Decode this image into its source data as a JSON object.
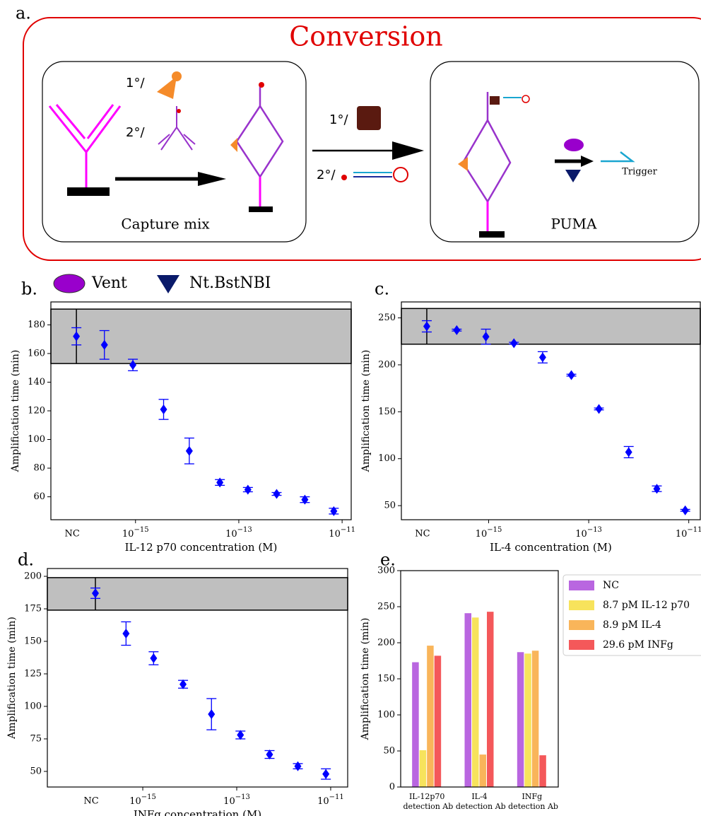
{
  "diagram": {
    "panel": "a.",
    "title": "Conversion",
    "capture": {
      "primary": "1°/",
      "secondary": "2°/",
      "label": "Capture mix"
    },
    "conversion": {
      "primary": "1°/",
      "secondary": "2°/"
    },
    "puma": {
      "label": "PUMA",
      "output": "Trigger"
    },
    "legend": [
      "Vent",
      "Nt.BstNBI"
    ]
  },
  "chart_data": [
    {
      "type": "scatter",
      "panel": "b.",
      "x_label": "IL-12 p70 concentration (M)",
      "y_label": "Amplification time (min)",
      "color": "#0000ff",
      "xscale": "log",
      "control": {
        "label": "NC",
        "value": 172,
        "error": 6
      },
      "band": [
        153,
        191
      ],
      "x": [
        2.5e-16,
        8.9e-16,
        3.5e-15,
        1.1e-14,
        4.3e-14,
        1.5e-13,
        5.4e-13,
        1.9e-12,
        6.9e-12
      ],
      "values": [
        166,
        152,
        121,
        92,
        70,
        65,
        62,
        58,
        50
      ],
      "errors": [
        10,
        4,
        7,
        9,
        2,
        1.5,
        1,
        2,
        2
      ],
      "xlim": [
        2.3e-17,
        1.5e-11
      ],
      "ylim": [
        44,
        196
      ],
      "xticks": [
        {
          "value": 1e-15,
          "label": "10−15"
        },
        {
          "value": 1e-13,
          "label": "10−13"
        },
        {
          "value": 1e-11,
          "label": "10−11"
        }
      ],
      "yticks": [
        60,
        80,
        100,
        120,
        140,
        160,
        180
      ]
    },
    {
      "type": "scatter",
      "panel": "c.",
      "x_label": "IL-4 concentration (M)",
      "y_label": "Amplification time (min)",
      "color": "#0000ff",
      "xscale": "log",
      "control": {
        "label": "NC",
        "value": 241,
        "error": 6
      },
      "band": [
        222,
        260
      ],
      "x": [
        2.3e-16,
        8.8e-16,
        3.2e-15,
        1.2e-14,
        4.5e-14,
        1.6e-13,
        6.3e-13,
        2.3e-12,
        8.5e-12
      ],
      "values": [
        237,
        230,
        223,
        208,
        189,
        153,
        107,
        68,
        45
      ],
      "errors": [
        1,
        8,
        1,
        6,
        1,
        1,
        6,
        3,
        1
      ],
      "xlim": [
        1.8e-17,
        1.7e-11
      ],
      "ylim": [
        35,
        267
      ],
      "xticks": [
        {
          "value": 1e-15,
          "label": "10−15"
        },
        {
          "value": 1e-13,
          "label": "10−13"
        },
        {
          "value": 1e-11,
          "label": "10−11"
        }
      ],
      "yticks": [
        50,
        100,
        150,
        200,
        250
      ]
    },
    {
      "type": "scatter",
      "panel": "d.",
      "x_label": "INFg concentration (M)",
      "y_label": "Amplification time (min)",
      "color": "#0000ff",
      "xscale": "log",
      "control": {
        "label": "NC",
        "value": 187,
        "error": 4
      },
      "band": [
        174,
        199
      ],
      "x": [
        4.4e-16,
        1.7e-15,
        7.2e-15,
        2.9e-14,
        1.2e-13,
        5e-13,
        2e-12,
        7.9e-12
      ],
      "values": [
        156,
        137,
        117,
        94,
        78,
        63,
        54,
        48
      ],
      "errors": [
        9,
        5,
        3,
        12,
        3,
        3,
        2,
        4
      ],
      "xlim": [
        9.3e-18,
        2.3e-11
      ],
      "ylim": [
        38,
        206
      ],
      "xticks": [
        {
          "value": 1e-15,
          "label": "10−15"
        },
        {
          "value": 1e-13,
          "label": "10−13"
        },
        {
          "value": 1e-11,
          "label": "10−11"
        }
      ],
      "yticks": [
        50,
        75,
        100,
        125,
        150,
        175,
        200
      ]
    },
    {
      "type": "bar",
      "panel": "e.",
      "y_label": "Amplification time (min)",
      "categories": [
        "IL-12p70 detection Ab",
        "IL-4 detection Ab",
        "INFg detection Ab"
      ],
      "series": [
        {
          "name": "NC",
          "color": "#b966e0",
          "values": [
            173,
            241,
            187
          ]
        },
        {
          "name": "8.7 pM IL-12 p70",
          "color": "#f7e35c",
          "values": [
            51,
            235,
            185
          ]
        },
        {
          "name": "8.9 pM IL-4",
          "color": "#f9b55a",
          "values": [
            196,
            45,
            189
          ]
        },
        {
          "name": "29.6 pM INFg",
          "color": "#f4585a",
          "values": [
            182,
            243,
            44
          ]
        }
      ],
      "ylim": [
        0,
        300
      ],
      "yticks": [
        0,
        50,
        100,
        150,
        200,
        250,
        300
      ]
    }
  ]
}
